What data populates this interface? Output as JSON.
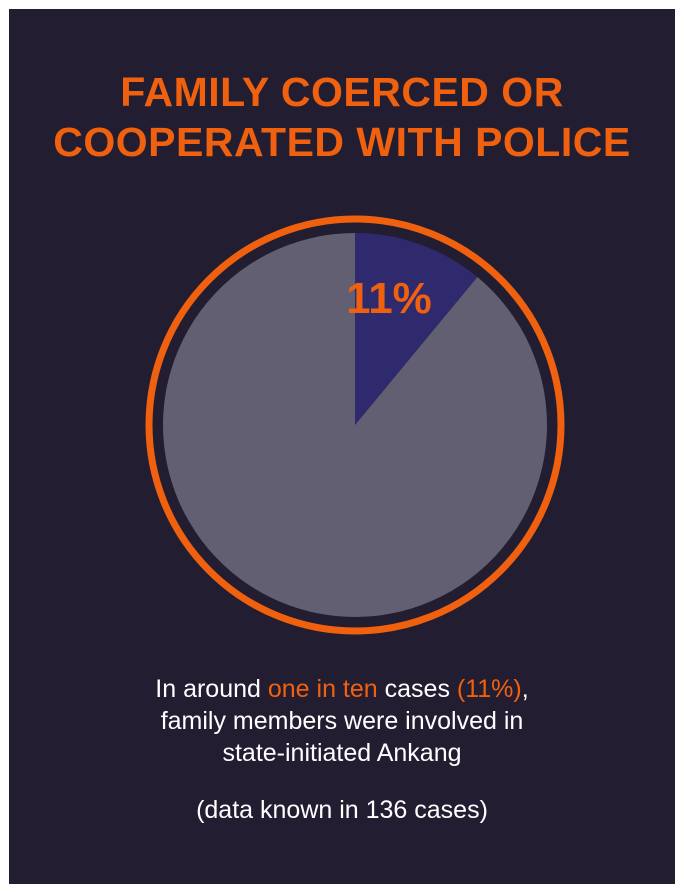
{
  "colors": {
    "background": "#231d32",
    "accent": "#f0610f",
    "slice_highlight": "#2f2a6d",
    "slice_rest": "#635f72",
    "text": "#ffffff"
  },
  "title": {
    "line1": "FAMILY COERCED OR",
    "line2": "COOPERATED WITH POLICE"
  },
  "caption": {
    "prefix": "In around ",
    "highlight1": "one in ten",
    "middle": " cases ",
    "highlight2": "(11%)",
    "suffix": ",",
    "line2": "family members were involved in",
    "line3": "state-initiated Ankang"
  },
  "note": "(data known in 136 cases)",
  "chart_data": {
    "type": "pie",
    "title": "FAMILY COERCED OR COOPERATED WITH POLICE",
    "slices": [
      {
        "label": "11%",
        "value": 11,
        "color": "#2f2a6d"
      },
      {
        "label": "",
        "value": 89,
        "color": "#635f72"
      }
    ]
  }
}
